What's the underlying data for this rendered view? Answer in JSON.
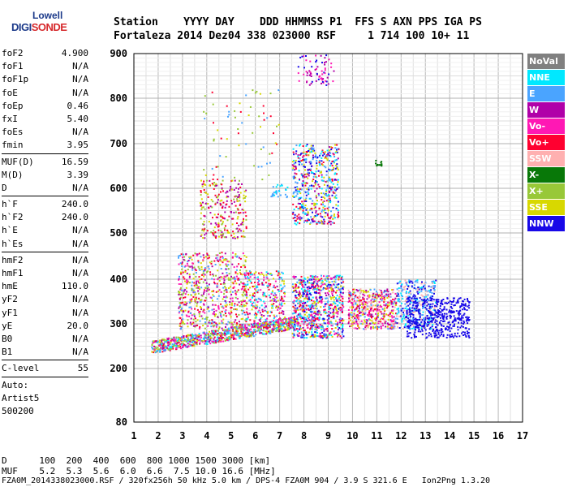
{
  "logo": {
    "line1": "Lowell",
    "line2a": "DIGI",
    "line2b": "SONDE"
  },
  "header": {
    "line1": "Station    YYYY DAY    DDD HHMMSS P1  FFS S AXN PPS IGA PS",
    "line2": "Fortaleza 2014 Dez04 338 023000 RSF     1 714 100 10+ 11"
  },
  "params_group1": [
    {
      "name": "foF2",
      "value": "4.900"
    },
    {
      "name": "foF1",
      "value": "N/A"
    },
    {
      "name": "foF1p",
      "value": "N/A"
    },
    {
      "name": "foE",
      "value": "N/A"
    },
    {
      "name": "foEp",
      "value": "0.46"
    },
    {
      "name": "fxI",
      "value": "5.40"
    },
    {
      "name": "foEs",
      "value": "N/A"
    },
    {
      "name": "fmin",
      "value": "3.95"
    }
  ],
  "params_group2": [
    {
      "name": "MUF(D)",
      "value": "16.59"
    },
    {
      "name": "M(D)",
      "value": "3.39"
    },
    {
      "name": "D",
      "value": "N/A"
    }
  ],
  "params_group3": [
    {
      "name": "h`F",
      "value": "240.0"
    },
    {
      "name": "h`F2",
      "value": "240.0"
    },
    {
      "name": "h`E",
      "value": "N/A"
    },
    {
      "name": "h`Es",
      "value": "N/A"
    }
  ],
  "params_group4": [
    {
      "name": "hmF2",
      "value": "N/A"
    },
    {
      "name": "hmF1",
      "value": "N/A"
    },
    {
      "name": "hmE",
      "value": "110.0"
    },
    {
      "name": "yF2",
      "value": "N/A"
    },
    {
      "name": "yF1",
      "value": "N/A"
    },
    {
      "name": "yE",
      "value": "20.0"
    },
    {
      "name": "B0",
      "value": "N/A"
    },
    {
      "name": "B1",
      "value": "N/A"
    }
  ],
  "clevel": {
    "name": "C-level",
    "value": "55"
  },
  "auto": {
    "line1": "Auto:",
    "line2": "Artist5",
    "line3": "500200"
  },
  "legend": [
    {
      "label": "NoVal",
      "color": "#808080"
    },
    {
      "label": "NNE",
      "color": "#00e8ff"
    },
    {
      "label": "E",
      "color": "#4aa4ff"
    },
    {
      "label": "W",
      "color": "#b000a8"
    },
    {
      "label": "Vo-",
      "color": "#ff18b4"
    },
    {
      "label": "Vo+",
      "color": "#ff0030"
    },
    {
      "label": "SSW",
      "color": "#ffb0b0"
    },
    {
      "label": "X-",
      "color": "#087808"
    },
    {
      "label": "X+",
      "color": "#98c838"
    },
    {
      "label": "SSE",
      "color": "#d8d800"
    },
    {
      "label": "NNW",
      "color": "#1808e8"
    }
  ],
  "footer": {
    "d_line": "D      100  200  400  600  800 1000 1500 3000 [km]",
    "muf_line": "MUF    5.2  5.3  5.6  6.0  6.6  7.5 10.0 16.6 [MHz]",
    "file_line": "FZA0M_2014338023000.RSF / 320fx256h 50 kHz 5.0 km / DPS-4 FZA0M 904 / 3.9 S 321.6 E   Ion2Png 1.3.20"
  },
  "chart_data": {
    "type": "scatter",
    "xlabel": "",
    "ylabel": "",
    "xlim": [
      1,
      17
    ],
    "ylim": [
      80,
      900
    ],
    "xticks": [
      "1",
      "2",
      "3",
      "4",
      "5",
      "6",
      "7",
      "8",
      "9",
      "10",
      "11",
      "12",
      "13",
      "14",
      "15",
      "16",
      "17"
    ],
    "yticks": [
      "80",
      "200",
      "300",
      "400",
      "500",
      "600",
      "700",
      "800",
      "900"
    ],
    "grid": true,
    "y_tick_values": [
      80,
      200,
      300,
      400,
      500,
      600,
      700,
      800,
      900
    ],
    "clusters": [
      {
        "name": "trace-low",
        "x": [
          1.7,
          7.6
        ],
        "y": [
          235,
          300
        ],
        "colors": [
          "#4aa4ff",
          "#d8d800",
          "#ff18b4",
          "#00e8ff",
          "#ff0030",
          "#b000a8",
          "#98c838"
        ],
        "density": 900
      },
      {
        "name": "es-band-1",
        "x": [
          2.8,
          5.6
        ],
        "y": [
          290,
          460
        ],
        "colors": [
          "#ff0030",
          "#ff18b4",
          "#b000a8",
          "#4aa4ff",
          "#d8d800",
          "#98c838"
        ],
        "density": 650
      },
      {
        "name": "es-band-2",
        "x": [
          5.5,
          7.2
        ],
        "y": [
          300,
          420
        ],
        "colors": [
          "#ff0030",
          "#ff18b4",
          "#b000a8",
          "#4aa4ff",
          "#00e8ff",
          "#d8d800"
        ],
        "density": 300
      },
      {
        "name": "f-low-cluster",
        "x": [
          7.5,
          9.6
        ],
        "y": [
          270,
          410
        ],
        "colors": [
          "#ff0030",
          "#ff18b4",
          "#b000a8",
          "#4aa4ff",
          "#00e8ff",
          "#d8d800",
          "#1808e8"
        ],
        "density": 800
      },
      {
        "name": "f-mid",
        "x": [
          9.8,
          11.8
        ],
        "y": [
          290,
          380
        ],
        "colors": [
          "#ff0030",
          "#ff18b4",
          "#b000a8",
          "#4aa4ff",
          "#ffb0b0",
          "#d8d800"
        ],
        "density": 500
      },
      {
        "name": "spread-east",
        "x": [
          11.8,
          13.4
        ],
        "y": [
          290,
          400
        ],
        "colors": [
          "#4aa4ff",
          "#00e8ff",
          "#ffb0b0",
          "#1808e8"
        ],
        "density": 350
      },
      {
        "name": "nnw-tail",
        "x": [
          12.2,
          14.8
        ],
        "y": [
          270,
          360
        ],
        "colors": [
          "#1808e8"
        ],
        "density": 450
      },
      {
        "name": "mid-echo",
        "x": [
          3.7,
          5.6
        ],
        "y": [
          490,
          620
        ],
        "colors": [
          "#d8d800",
          "#98c838",
          "#ff0030",
          "#b000a8"
        ],
        "density": 260
      },
      {
        "name": "high-f",
        "x": [
          7.5,
          9.4
        ],
        "y": [
          520,
          700
        ],
        "colors": [
          "#1808e8",
          "#d8d800",
          "#4aa4ff",
          "#00e8ff",
          "#b000a8",
          "#ff0030"
        ],
        "density": 550
      },
      {
        "name": "top-echo",
        "x": [
          7.7,
          9.2
        ],
        "y": [
          830,
          900
        ],
        "colors": [
          "#b000a8",
          "#ff18b4",
          "#1808e8"
        ],
        "density": 70
      },
      {
        "name": "sparse-upper",
        "x": [
          3.8,
          7.0
        ],
        "y": [
          620,
          820
        ],
        "colors": [
          "#d8d800",
          "#98c838",
          "#ff0030",
          "#4aa4ff"
        ],
        "density": 70
      },
      {
        "name": "x-minus-spot",
        "x": [
          10.8,
          11.2
        ],
        "y": [
          650,
          665
        ],
        "colors": [
          "#087808"
        ],
        "density": 12
      },
      {
        "name": "nne-mid",
        "x": [
          6.6,
          7.3
        ],
        "y": [
          580,
          610
        ],
        "colors": [
          "#4aa4ff",
          "#00e8ff"
        ],
        "density": 30
      }
    ]
  }
}
